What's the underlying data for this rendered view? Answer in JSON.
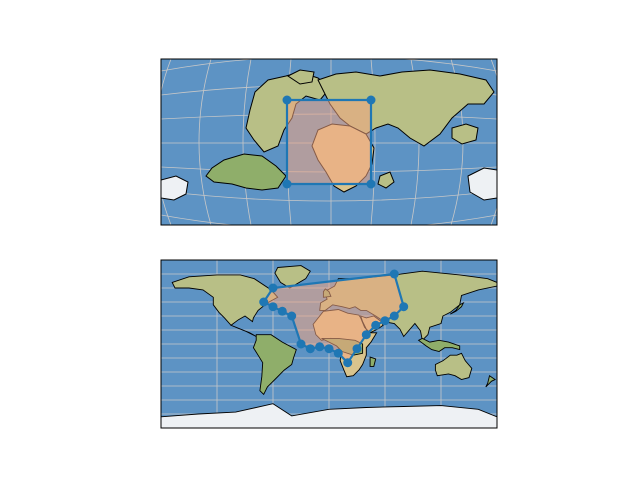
{
  "figure": {
    "background": "#ffffff"
  },
  "colors": {
    "ocean": "#5d93c4",
    "ocean_light": "#7aa9d2",
    "land": "#b8bf86",
    "land_green": "#8fae6a",
    "desert": "#d9c48d",
    "ice": "#eef1f4",
    "coast": "#000000",
    "grid": "#c8c8c8",
    "polygon_fill": "#f4a582",
    "polygon_stroke": "#1f77b4",
    "marker": "#1f77b4"
  },
  "maps": [
    {
      "name": "rotated-pole-map",
      "projection": "rotated-pole",
      "polygon": {
        "fill_alpha": 0.55,
        "vertices_lonlat": [
          [
            -70,
            60
          ],
          [
            30,
            60
          ],
          [
            30,
            -20
          ],
          [
            -70,
            -20
          ]
        ]
      }
    },
    {
      "name": "plate-carree-map",
      "projection": "plate-carree",
      "extent": {
        "lon": [
          -180,
          180
        ],
        "lat": [
          -90,
          90
        ]
      },
      "polygon": {
        "fill_alpha": 0.55,
        "vertices_lonlat": [
          [
            -60,
            60
          ],
          [
            -70,
            45
          ],
          [
            -60,
            40
          ],
          [
            -50,
            35
          ],
          [
            -40,
            30
          ],
          [
            -30,
            0
          ],
          [
            -20,
            -5
          ],
          [
            -10,
            -3
          ],
          [
            0,
            -5
          ],
          [
            10,
            -10
          ],
          [
            20,
            -20
          ],
          [
            30,
            -5
          ],
          [
            40,
            10
          ],
          [
            50,
            20
          ],
          [
            60,
            25
          ],
          [
            70,
            30
          ],
          [
            80,
            40
          ],
          [
            70,
            75
          ]
        ]
      }
    }
  ]
}
